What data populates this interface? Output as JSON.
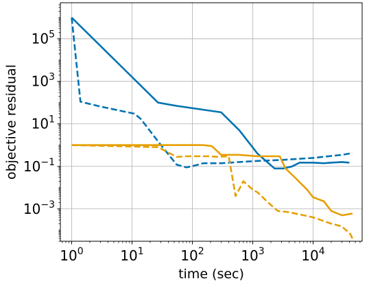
{
  "chart_data": {
    "type": "line",
    "xlabel": "time (sec)",
    "ylabel": "objective residual",
    "x_scale": "log",
    "y_scale": "log",
    "xlim": [
      0.65,
      65000
    ],
    "ylim": [
      3e-05,
      5000000
    ],
    "x_ticks": [
      {
        "base": "10",
        "exp": "0",
        "value": 1
      },
      {
        "base": "10",
        "exp": "1",
        "value": 10
      },
      {
        "base": "10",
        "exp": "2",
        "value": 100
      },
      {
        "base": "10",
        "exp": "3",
        "value": 1000
      },
      {
        "base": "10",
        "exp": "4",
        "value": 10000
      }
    ],
    "y_ticks": [
      {
        "base": "10",
        "exp": "−3",
        "value": 0.001
      },
      {
        "base": "10",
        "exp": "−1",
        "value": 0.1
      },
      {
        "base": "10",
        "exp": "1",
        "value": 10
      },
      {
        "base": "10",
        "exp": "3",
        "value": 1000
      },
      {
        "base": "10",
        "exp": "5",
        "value": 100000
      }
    ],
    "grid": true,
    "series": [
      {
        "color": "#0072b2",
        "style": "solid",
        "x": [
          1,
          27,
          55,
          300,
          600,
          1200,
          2300,
          3200,
          4500,
          6000,
          10000,
          15000,
          20000,
          30000,
          40000
        ],
        "y": [
          1000000,
          100,
          70,
          35,
          5,
          0.4,
          0.08,
          0.08,
          0.1,
          0.15,
          0.15,
          0.14,
          0.15,
          0.16,
          0.15
        ]
      },
      {
        "color": "#0072b2",
        "style": "dashed",
        "x": [
          1,
          1.4,
          3,
          11,
          14,
          27,
          55,
          80,
          110,
          150,
          300,
          600,
          1200,
          3000,
          10000,
          30000,
          45000
        ],
        "y": [
          1000000,
          110,
          65,
          30,
          17,
          1.5,
          0.12,
          0.09,
          0.11,
          0.14,
          0.14,
          0.16,
          0.18,
          0.2,
          0.25,
          0.35,
          0.42
        ]
      },
      {
        "color": "#e69f00",
        "style": "solid",
        "x": [
          1,
          10,
          27,
          150,
          210,
          300,
          600,
          1200,
          2800,
          3500,
          5000,
          8000,
          10000,
          15000,
          20000,
          30000,
          45000
        ],
        "y": [
          1,
          1,
          1,
          1,
          0.9,
          0.35,
          0.35,
          0.3,
          0.3,
          0.08,
          0.03,
          0.008,
          0.0035,
          0.0023,
          0.0008,
          0.0005,
          0.0006
        ]
      },
      {
        "color": "#e69f00",
        "style": "dashed",
        "x": [
          1,
          27,
          55,
          80,
          200,
          260,
          400,
          520,
          700,
          1000,
          1200,
          1800,
          2600,
          4000,
          10000,
          20000,
          30000,
          35000,
          40000,
          45000
        ],
        "y": [
          1,
          0.8,
          0.28,
          0.3,
          0.3,
          0.28,
          0.3,
          0.004,
          0.02,
          0.008,
          0.006,
          0.002,
          0.0008,
          0.0007,
          0.0004,
          0.0002,
          0.00015,
          0.0001,
          8e-05,
          4e-05
        ]
      }
    ]
  }
}
